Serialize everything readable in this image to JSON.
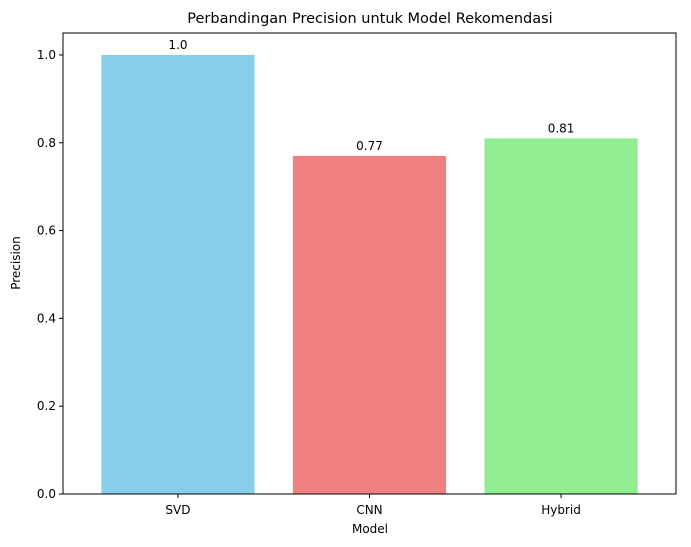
{
  "chart_data": {
    "type": "bar",
    "title": "Perbandingan Precision untuk Model Rekomendasi",
    "xlabel": "Model",
    "ylabel": "Precision",
    "categories": [
      "SVD",
      "CNN",
      "Hybrid"
    ],
    "values": [
      1.0,
      0.77,
      0.81
    ],
    "value_labels": [
      "1.0",
      "0.77",
      "0.81"
    ],
    "colors": [
      "#87ceeb",
      "#f08080",
      "#90ee90"
    ],
    "ylim": [
      0,
      1.05
    ],
    "yticks": [
      "0.0",
      "0.2",
      "0.4",
      "0.6",
      "0.8",
      "1.0"
    ],
    "grid": false,
    "legend": false
  }
}
